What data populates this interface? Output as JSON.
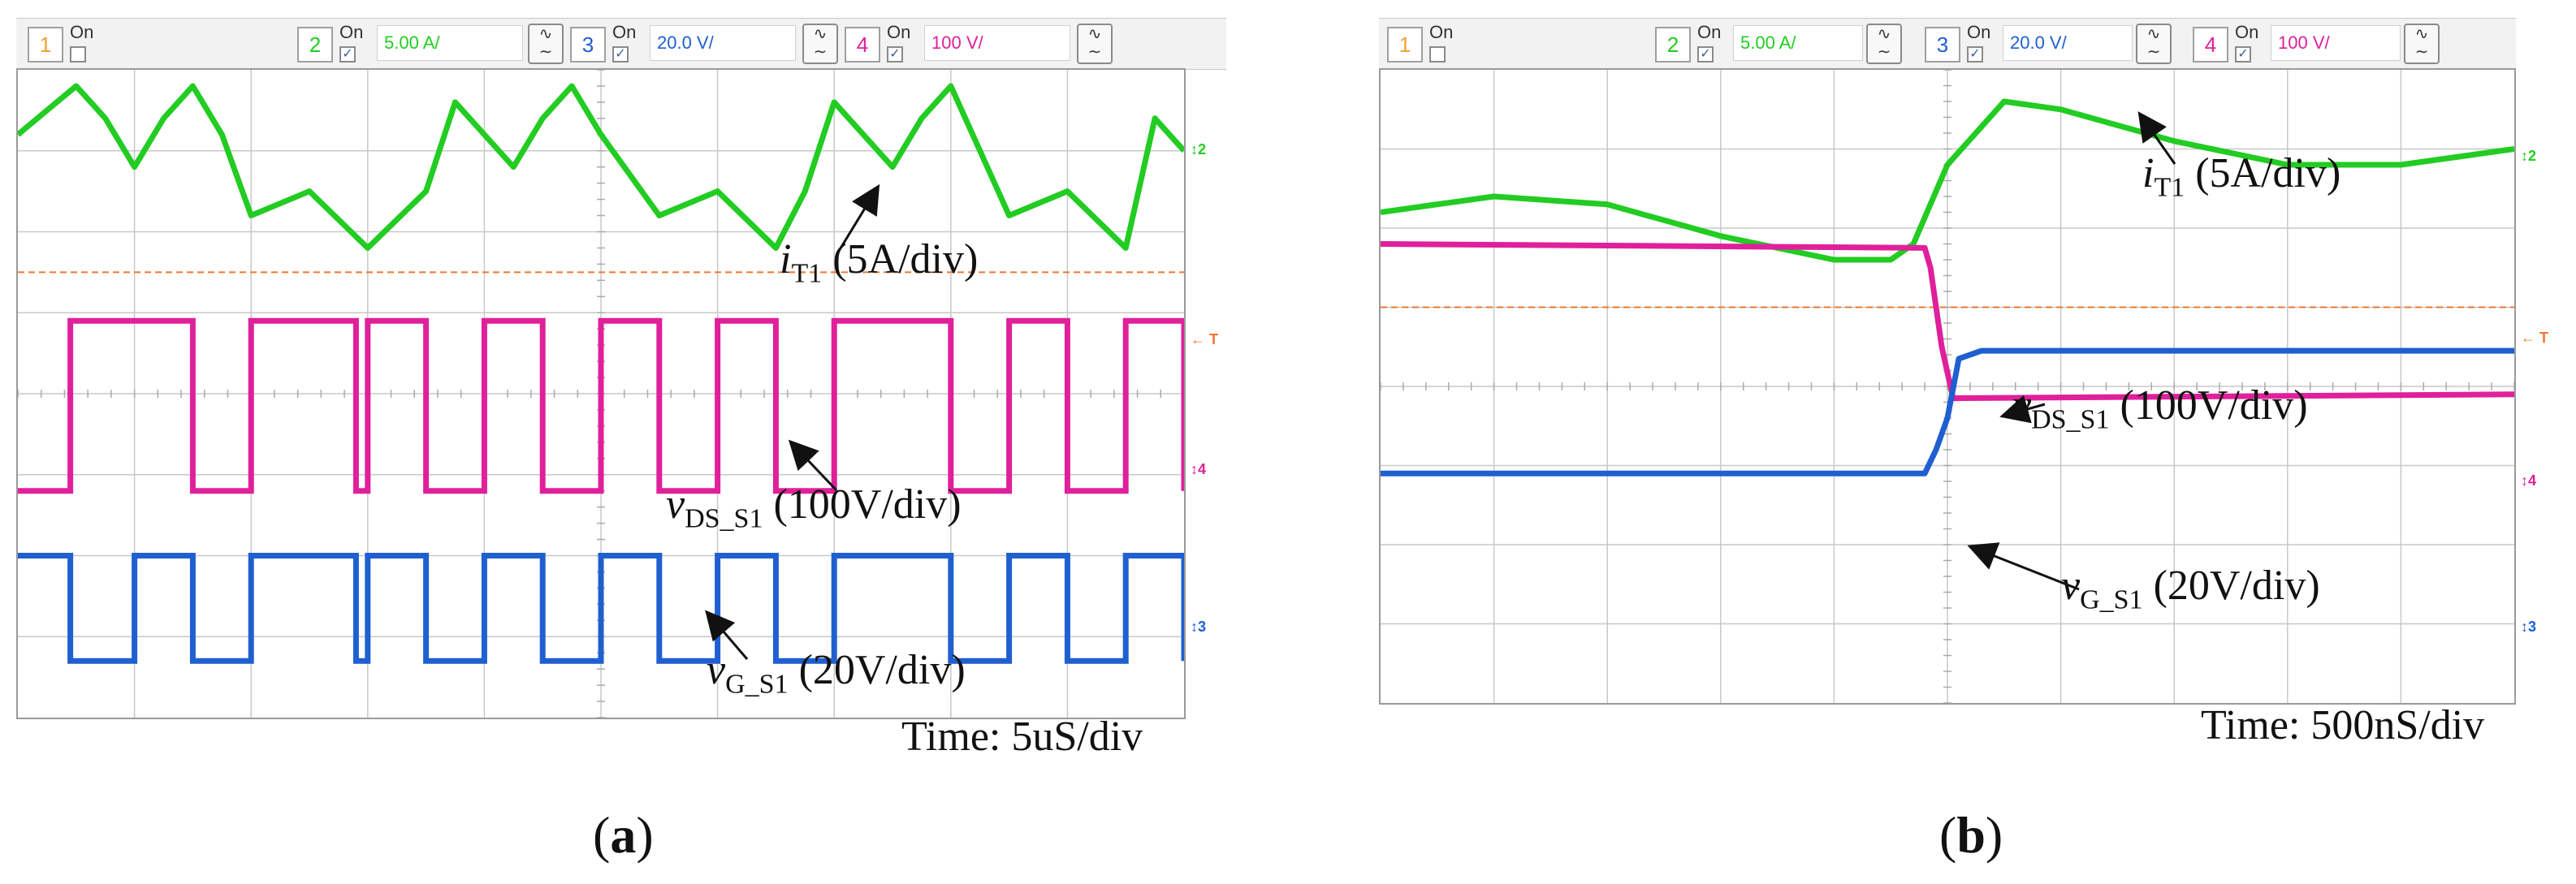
{
  "colors": {
    "ch1": "#f0a030",
    "ch2": "#22cc22",
    "ch3": "#1f5fd0",
    "ch4": "#e0209a",
    "trigger": "#f07830",
    "grid": "#c8c8c8"
  },
  "toolbar": {
    "channels": [
      {
        "num": "1",
        "on": "On",
        "checked": false,
        "scale": ""
      },
      {
        "num": "2",
        "on": "On",
        "checked": true,
        "scale": "5.00 A/"
      },
      {
        "num": "3",
        "on": "On",
        "checked": true,
        "scale": "20.0 V/"
      },
      {
        "num": "4",
        "on": "On",
        "checked": true,
        "scale": "100 V/"
      }
    ],
    "coupling_icon": "ac-dc-coupling-icon"
  },
  "markers": {
    "ch2": "2",
    "trigger": "T",
    "ch4": "4",
    "ch3": "3"
  },
  "panels": [
    {
      "label": "a",
      "time": "Time: 5uS/div",
      "annotations": {
        "iT1_var": "i",
        "iT1_sub": "T1",
        "iT1_scale": " (5A/div)",
        "vds_var": "v",
        "vds_sub": "DS_S1",
        "vds_scale": " (100V/div)",
        "vg_var": "v",
        "vg_sub": "G_S1",
        "vg_scale": " (20V/div)"
      }
    },
    {
      "label": "b",
      "time": "Time: 500nS/div",
      "annotations": {
        "iT1_var": "i",
        "iT1_sub": "T1",
        "iT1_scale": " (5A/div)",
        "vds_var": "v",
        "vds_sub": "DS_S1",
        "vds_scale": " (100V/div)",
        "vg_var": "v",
        "vg_sub": "G_S1",
        "vg_scale": " (20V/div)"
      }
    }
  ],
  "chart_data": [
    {
      "type": "line",
      "x_unit": "div",
      "xlim": [
        0,
        10
      ],
      "ylim": [
        -4,
        4
      ],
      "grid": true,
      "series": [
        {
          "name": "iT1 (5A/div)",
          "channel": 2,
          "x": [
            0,
            0.5,
            0.75,
            1,
            1.25,
            1.5,
            1.75,
            2,
            2.5,
            3,
            3.5,
            3.75,
            4,
            4.25,
            4.5,
            4.75,
            5,
            5.5,
            6,
            6.5,
            6.75,
            7,
            7.25,
            7.5,
            7.75,
            8,
            8.5,
            9,
            9.5,
            9.75,
            10
          ],
          "y": [
            3.2,
            3.8,
            3.4,
            2.8,
            3.4,
            3.8,
            3.2,
            2.2,
            2.5,
            1.8,
            2.5,
            3.6,
            3.2,
            2.8,
            3.4,
            3.8,
            3.2,
            2.2,
            2.5,
            1.8,
            2.5,
            3.6,
            3.2,
            2.8,
            3.4,
            3.8,
            2.2,
            2.5,
            1.8,
            3.4,
            3.0
          ]
        },
        {
          "name": "vDS_S1 (100V/div)",
          "channel": 4,
          "x": [
            0,
            0.45,
            1.0,
            1.5,
            2.0,
            2.9,
            3.0,
            3.5,
            4.0,
            4.5,
            5.0,
            5.5,
            6.0,
            6.5,
            7.0,
            8.0,
            8.5,
            9.0,
            9.5,
            10
          ],
          "y": [
            -1.2,
            0.9,
            0.9,
            -1.2,
            0.9,
            -1.2,
            0.9,
            -1.2,
            0.9,
            -1.2,
            0.9,
            -1.2,
            0.9,
            -1.2,
            0.9,
            -1.2,
            0.9,
            -1.2,
            0.9,
            -1.2
          ]
        },
        {
          "name": "vG_S1 (20V/div)",
          "channel": 3,
          "x": [
            0,
            0.45,
            1.0,
            1.5,
            2.0,
            2.9,
            3.0,
            3.5,
            4.0,
            4.5,
            5.0,
            5.5,
            6.0,
            6.5,
            7.0,
            8.0,
            8.5,
            9.0,
            9.5,
            10
          ],
          "y": [
            -2.0,
            -3.3,
            -2.0,
            -3.3,
            -2.0,
            -3.3,
            -2.0,
            -3.3,
            -2.0,
            -3.3,
            -2.0,
            -3.3,
            -2.0,
            -3.3,
            -2.0,
            -3.3,
            -2.0,
            -3.3,
            -2.0,
            -3.3
          ]
        }
      ]
    },
    {
      "type": "line",
      "x_unit": "div",
      "xlim": [
        0,
        10
      ],
      "ylim": [
        -4,
        4
      ],
      "grid": true,
      "series": [
        {
          "name": "iT1 (5A/div)",
          "channel": 2,
          "x": [
            0,
            1,
            2,
            3,
            4,
            4.5,
            4.7,
            5,
            5.5,
            6,
            7,
            8,
            9,
            10
          ],
          "y": [
            2.2,
            2.4,
            2.3,
            1.9,
            1.6,
            1.6,
            1.8,
            2.8,
            3.6,
            3.5,
            3.1,
            2.8,
            2.8,
            3.0
          ]
        },
        {
          "name": "vDS_S1 (100V/div)",
          "channel": 4,
          "x": [
            0,
            4.8,
            4.85,
            4.95,
            5.05,
            10
          ],
          "y": [
            1.8,
            1.75,
            1.5,
            0.5,
            -0.15,
            -0.1
          ]
        },
        {
          "name": "vG_S1 (20V/div)",
          "channel": 3,
          "x": [
            0,
            4.8,
            4.9,
            5.0,
            5.1,
            5.3,
            10
          ],
          "y": [
            -1.1,
            -1.1,
            -0.8,
            -0.4,
            0.35,
            0.45,
            0.45
          ]
        }
      ]
    }
  ]
}
